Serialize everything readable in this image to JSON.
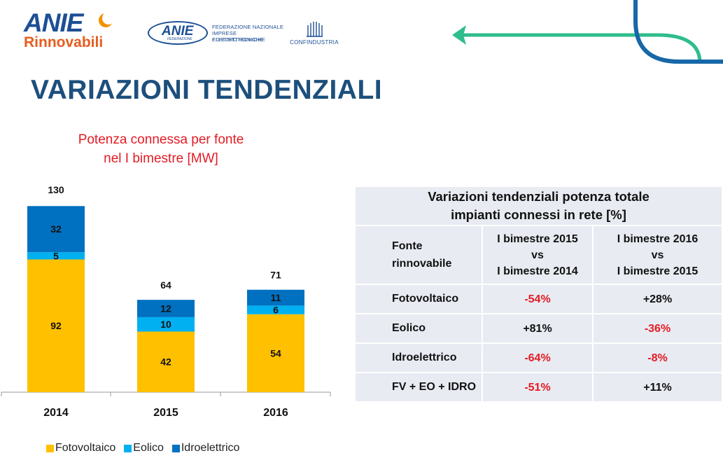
{
  "logos": {
    "anie": "ANIE",
    "rinnovabili": "Rinnovabili",
    "federazione_anie": "ANIE",
    "federazione_sub": "FEDERAZIONE",
    "federazione_lines": [
      "FEDERAZIONE NAZIONALE",
      "IMPRESE ELETTROTECNICHE",
      "ED ELETTRONICHE"
    ],
    "confindustria": "CONFINDUSTRIA"
  },
  "colors": {
    "title": "#1d4f7c",
    "chart_title": "#e41b24",
    "fotovoltaico": "#ffc000",
    "eolico": "#00b0f0",
    "idroelettrico": "#0070c0",
    "arrow": "#2ebd8c",
    "negative": "#e41b24"
  },
  "page": {
    "title": "VARIAZIONI TENDENZIALI"
  },
  "chart_data": {
    "type": "bar",
    "stacked": true,
    "title_lines": [
      "Potenza connessa per fonte",
      "nel I bimestre [MW]"
    ],
    "categories": [
      "2014",
      "2015",
      "2016"
    ],
    "series": [
      {
        "name": "Fotovoltaico",
        "values": [
          92,
          42,
          54
        ],
        "color": "#ffc000"
      },
      {
        "name": "Eolico",
        "values": [
          5,
          10,
          6
        ],
        "color": "#00b0f0"
      },
      {
        "name": "Idroelettrico",
        "values": [
          32,
          12,
          11
        ],
        "color": "#0070c0"
      }
    ],
    "totals": [
      130,
      64,
      71
    ],
    "xlabel": "",
    "ylabel": "",
    "ylim": [
      0,
      130
    ],
    "legend_position": "bottom",
    "grid": false
  },
  "table": {
    "caption_lines": [
      "Variazioni tendenziali potenza totale",
      "impianti connessi in rete [%]"
    ],
    "header": {
      "col0_lines": [
        "Fonte",
        "rinnovabile"
      ],
      "col1_lines": [
        "I bimestre 2015",
        "vs",
        "I bimestre 2014"
      ],
      "col2_lines": [
        "I bimestre 2016",
        "vs",
        "I bimestre 2015"
      ]
    },
    "rows": [
      {
        "label": "Fotovoltaico",
        "v1": "-54%",
        "v2": "+28%"
      },
      {
        "label": "Eolico",
        "v1": "+81%",
        "v2": "-36%"
      },
      {
        "label": "Idroelettrico",
        "v1": "-64%",
        "v2": "-8%"
      },
      {
        "label": "FV + EO + IDRO",
        "v1": "-51%",
        "v2": "+11%"
      }
    ]
  }
}
